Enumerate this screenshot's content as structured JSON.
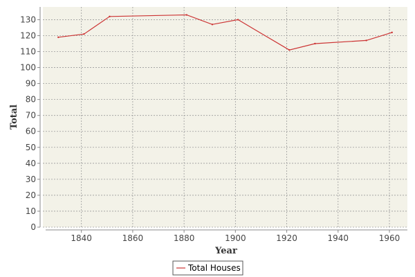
{
  "chart_data": {
    "type": "line",
    "title": "",
    "xlabel": "Year",
    "ylabel": "Total",
    "xlim": [
      1825,
      1967
    ],
    "ylim": [
      0,
      138
    ],
    "x_ticks": [
      1840,
      1860,
      1880,
      1900,
      1920,
      1940,
      1960
    ],
    "y_ticks": [
      0,
      10,
      20,
      30,
      40,
      50,
      60,
      70,
      80,
      90,
      100,
      110,
      120,
      130
    ],
    "grid": true,
    "legend_position": "bottom-center",
    "series": [
      {
        "name": "Total Houses",
        "color": "#cc3333",
        "x": [
          1831,
          1841,
          1851,
          1881,
          1891,
          1901,
          1921,
          1931,
          1951,
          1961
        ],
        "values": [
          119,
          121,
          132,
          133,
          127,
          130,
          111,
          115,
          117,
          122
        ]
      }
    ]
  },
  "colors": {
    "plot_background": "#f3f2e8",
    "grid": "#9a9a9a",
    "axis": "#888888"
  }
}
